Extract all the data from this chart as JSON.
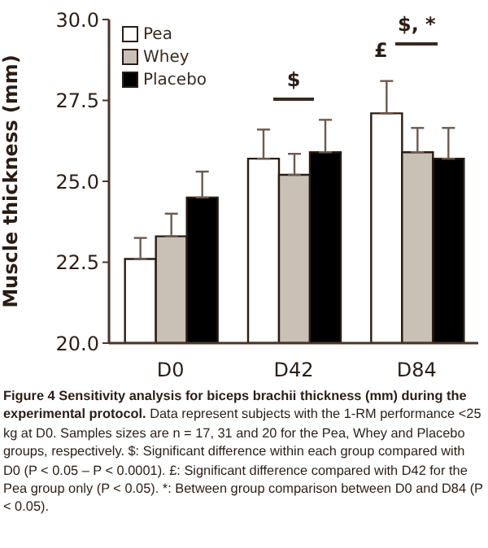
{
  "chart_data": {
    "type": "bar",
    "title": "Figure 4 Sensitivity analysis for biceps brachii thickness (mm) during the experimental protocol.",
    "ylabel": "Muscle thickness (mm)",
    "categories": [
      "D0",
      "D42",
      "D84"
    ],
    "series": [
      {
        "name": "Pea",
        "color": "#ffffff",
        "values": [
          22.6,
          25.7,
          27.1
        ],
        "errors": [
          [
            22.6,
            23.25
          ],
          [
            25.7,
            26.6
          ],
          [
            27.1,
            28.1
          ]
        ]
      },
      {
        "name": "Whey",
        "color": "#c9c0b6",
        "values": [
          23.3,
          25.2,
          25.9
        ],
        "errors": [
          [
            23.3,
            24.0
          ],
          [
            25.2,
            25.85
          ],
          [
            25.9,
            26.65
          ]
        ]
      },
      {
        "name": "Placebo",
        "color": "#000000",
        "values": [
          24.5,
          25.9,
          25.7
        ],
        "errors": [
          [
            24.5,
            25.3
          ],
          [
            25.9,
            26.9
          ],
          [
            25.7,
            26.65
          ]
        ]
      }
    ],
    "ylim": [
      20,
      30
    ],
    "yticks": [
      {
        "value": 20,
        "label": "20.0"
      },
      {
        "value": 22.5,
        "label": "22.5"
      },
      {
        "value": 25,
        "label": "25.0"
      },
      {
        "value": 27.5,
        "label": "27.5"
      },
      {
        "value": 30,
        "label": "30.0"
      }
    ],
    "grid": false,
    "legend": "top left",
    "annotations": [
      "$",
      "$, *",
      "£",
      "Data represent subjects with the 1-RM performance <25 kg at D0. Samples sizes are n = 17, 31 and 20 for the Pea, Whey and Placebo groups, respectively. $: Significant difference within each group compared with D0 (P < 0.05 – P < 0.0001). £: Significant difference compared with D42 for the Pea group only (P < 0.05). *: Between group comparison between D0 and D84 (P < 0.05)."
    ]
  }
}
